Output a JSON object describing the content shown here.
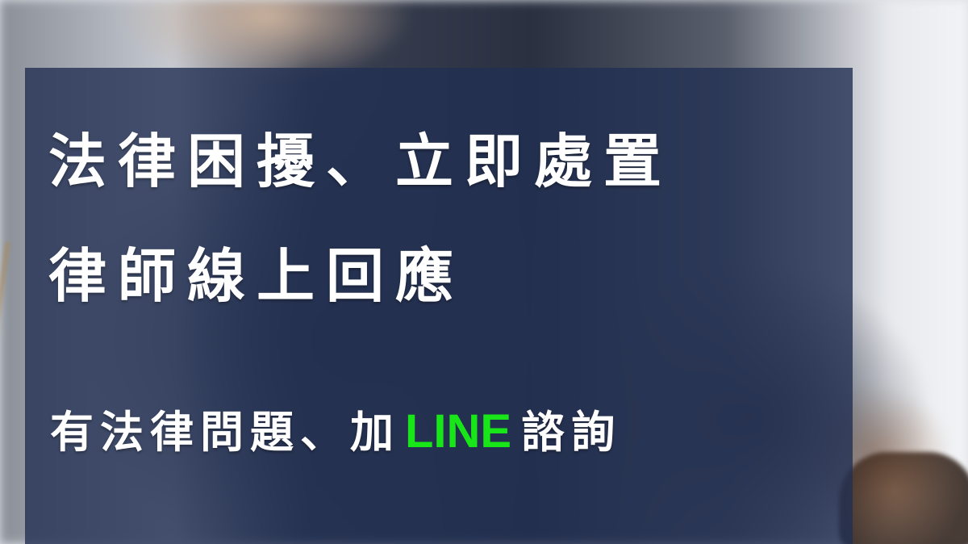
{
  "banner": {
    "headline_line1": "法律困擾、立即處置",
    "headline_line2": "律師線上回應",
    "subline_prefix": "有法律問題、加",
    "subline_brand": "LINE",
    "subline_suffix": "諮詢"
  },
  "colors": {
    "panel_overlay": "#223052",
    "headline_text": "#ffffff",
    "brand_green": "#19e619"
  }
}
